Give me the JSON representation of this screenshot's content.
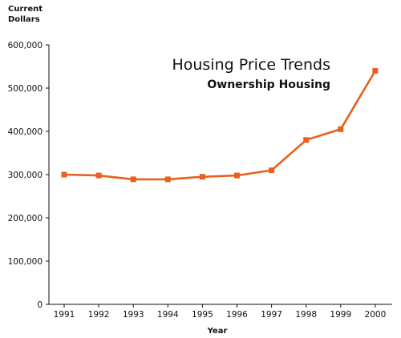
{
  "chart_data": {
    "type": "line",
    "title": "Housing Price Trends",
    "subtitle": "Ownership Housing",
    "ylabel_lines": [
      "Current",
      "Dollars"
    ],
    "xlabel": "Year",
    "categories": [
      "1991",
      "1992",
      "1993",
      "1994",
      "1995",
      "1996",
      "1997",
      "1998",
      "1999",
      "2000"
    ],
    "series": [
      {
        "values": [
          300000,
          298000,
          289000,
          289000,
          295000,
          298000,
          310000,
          380000,
          405000,
          540000
        ],
        "color": "#e8601c"
      }
    ],
    "ylim": [
      0,
      600000
    ],
    "yticks": [
      0,
      100000,
      200000,
      300000,
      400000,
      500000,
      600000
    ],
    "ytick_labels": [
      "0",
      "100,000",
      "200,000",
      "300,000",
      "400,000",
      "500,000",
      "600,000"
    ],
    "grid": false,
    "legend": "none"
  }
}
